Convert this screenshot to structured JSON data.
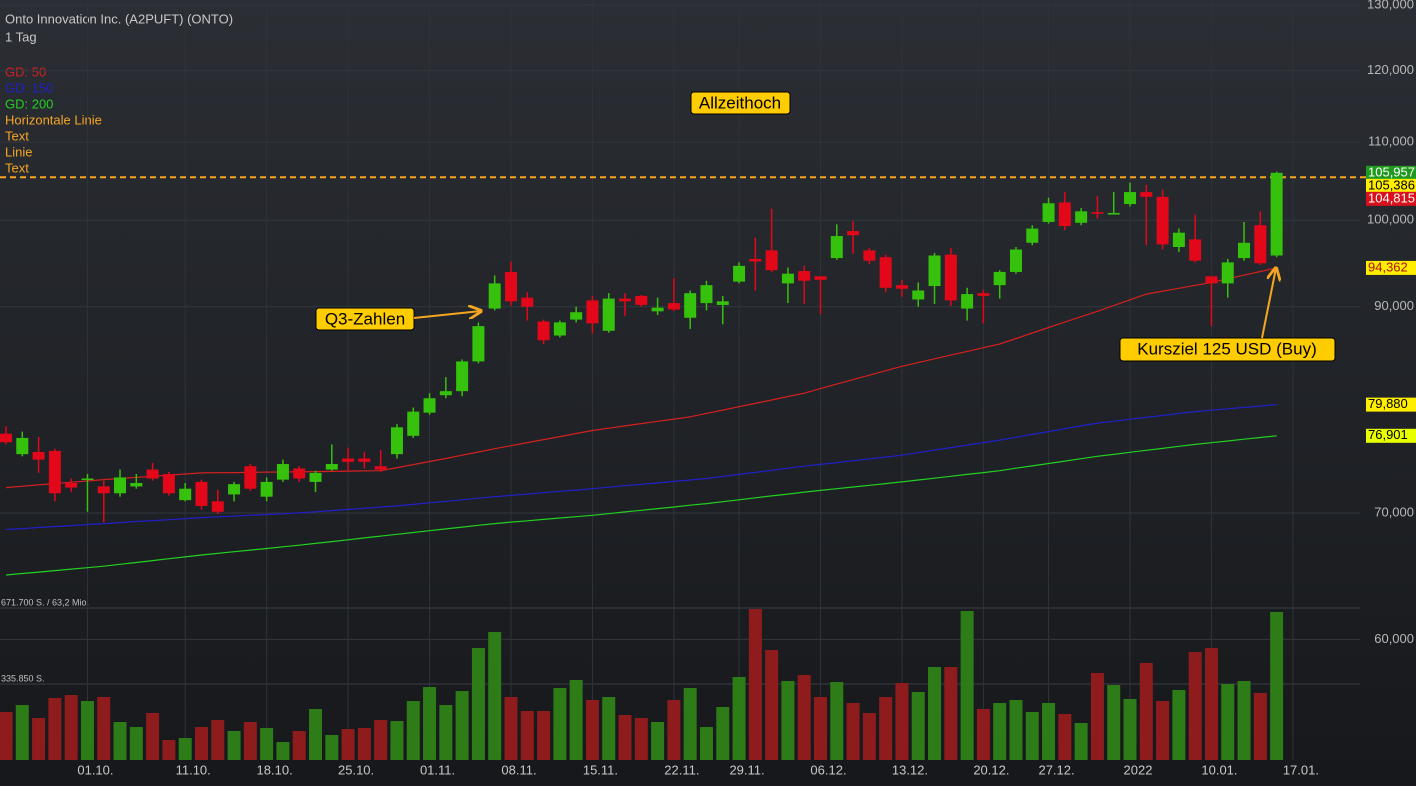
{
  "chart_data": {
    "type": "candlestick",
    "title": "Onto Innovation Inc. (A2PUFT) (ONTO)",
    "subtitle": "1 Tag",
    "log_scale": true,
    "grid": true,
    "categories": [
      null,
      null,
      null,
      null,
      null,
      "01.10.",
      null,
      null,
      null,
      null,
      null,
      "11.10.",
      null,
      null,
      null,
      null,
      "18.10.",
      null,
      null,
      null,
      null,
      "25.10.",
      null,
      null,
      null,
      null,
      "01.11.",
      null,
      null,
      null,
      null,
      "08.11.",
      null,
      null,
      null,
      null,
      "15.11.",
      null,
      null,
      null,
      null,
      "22.11.",
      null,
      null,
      null,
      "29.11.",
      null,
      null,
      null,
      null,
      "06.12.",
      null,
      null,
      null,
      null,
      "13.12.",
      null,
      null,
      null,
      null,
      "20.12.",
      null,
      null,
      null,
      "27.12.",
      null,
      null,
      null,
      null,
      "2022",
      null,
      null,
      null,
      null,
      "10.01.",
      null,
      null,
      null,
      null,
      "17.01."
    ],
    "up_color": "#36c20c",
    "down_color": "#e2081a",
    "open": [
      77100,
      75200,
      75400,
      75500,
      72600,
      72900,
      72300,
      71700,
      72300,
      73800,
      73400,
      71100,
      72700,
      71000,
      71600,
      74100,
      71400,
      72900,
      73900,
      72700,
      73800,
      74800,
      74800,
      74100,
      75200,
      76900,
      79100,
      80800,
      81200,
      84200,
      89800,
      93900,
      91000,
      88400,
      86900,
      88600,
      90700,
      87400,
      90900,
      91200,
      89500,
      90400,
      88800,
      90400,
      90200,
      92800,
      95400,
      96400,
      92600,
      94000,
      93400,
      95500,
      98700,
      96400,
      95600,
      92400,
      90800,
      92300,
      95900,
      89800,
      91500,
      92400,
      93900,
      97300,
      99800,
      102200,
      99700,
      101000,
      100700,
      102000,
      103500,
      102900,
      96800,
      97700,
      93400,
      92600,
      95500,
      99400,
      95800,
      null
    ],
    "high": [
      77800,
      77300,
      76800,
      75700,
      73000,
      73400,
      72800,
      73800,
      73400,
      74400,
      73600,
      72600,
      72900,
      72000,
      72700,
      74300,
      73100,
      74700,
      74100,
      73700,
      76100,
      75800,
      75400,
      75600,
      78000,
      79600,
      81000,
      82600,
      84400,
      88300,
      93500,
      95100,
      91600,
      88600,
      88500,
      90000,
      91200,
      91500,
      91500,
      91300,
      91000,
      93200,
      91800,
      92900,
      91200,
      95000,
      97900,
      101400,
      94400,
      94600,
      93400,
      99500,
      99900,
      96700,
      95900,
      93000,
      92700,
      96100,
      96700,
      92100,
      91900,
      94100,
      96800,
      99400,
      102800,
      103500,
      101500,
      103000,
      103500,
      104700,
      104400,
      103800,
      99000,
      100700,
      93400,
      95400,
      99800,
      101100,
      106100,
      null
    ],
    "low": [
      76100,
      75000,
      73500,
      71000,
      71800,
      70100,
      69200,
      71400,
      72100,
      72800,
      71500,
      71000,
      70300,
      69900,
      71000,
      71900,
      71000,
      72700,
      72700,
      71800,
      73700,
      73700,
      73900,
      73600,
      74800,
      76700,
      78900,
      80500,
      80700,
      84000,
      89600,
      90100,
      88500,
      86000,
      86700,
      88300,
      87100,
      87200,
      89000,
      90000,
      89100,
      89500,
      87600,
      89600,
      88100,
      92600,
      91800,
      93900,
      90400,
      90300,
      89200,
      95300,
      96000,
      94800,
      91600,
      91100,
      90000,
      90300,
      90100,
      88500,
      88200,
      90900,
      93700,
      97000,
      99600,
      98800,
      99400,
      100200,
      100700,
      101700,
      97000,
      96500,
      96200,
      95000,
      87900,
      91000,
      95200,
      94700,
      95600,
      null
    ],
    "close": [
      76300,
      76700,
      74700,
      71700,
      72200,
      73000,
      71700,
      73100,
      72600,
      73000,
      71700,
      72100,
      70600,
      70100,
      72500,
      72100,
      72700,
      74300,
      73000,
      73500,
      74300,
      74500,
      74500,
      73800,
      77700,
      79200,
      80500,
      81200,
      84200,
      87900,
      92600,
      90600,
      90000,
      86400,
      88300,
      89400,
      88200,
      90900,
      90600,
      90200,
      89900,
      89700,
      91500,
      92400,
      90600,
      94600,
      95100,
      94100,
      93700,
      92900,
      93000,
      98100,
      98200,
      95200,
      92100,
      92000,
      91800,
      95800,
      90700,
      91400,
      91200,
      93900,
      96500,
      99000,
      102100,
      99300,
      101100,
      100800,
      100900,
      103500,
      102900,
      97100,
      98500,
      95200,
      92600,
      95000,
      97300,
      94900,
      105957,
      null
    ],
    "volume": {
      "up_color": "#2d7c17",
      "down_color": "#8f1c1c",
      "values": [
        212100,
        243000,
        185600,
        274000,
        287200,
        260700,
        278400,
        167900,
        145800,
        207700,
        88400,
        97200,
        145800,
        176800,
        128200,
        167900,
        141400,
        79500,
        128200,
        225400,
        110500,
        137000,
        141400,
        176800,
        172300,
        260700,
        322600,
        243000,
        304900,
        494900,
        565600,
        278400,
        216500,
        216500,
        318200,
        353500,
        265100,
        278400,
        198900,
        185600,
        167900,
        265100,
        318200,
        145800,
        234200,
        366800,
        667300,
        486100,
        349100,
        375600,
        278400,
        344700,
        251900,
        207700,
        278400,
        340300,
        300500,
        411000,
        411000,
        658400,
        225400,
        251900,
        265100,
        212100,
        251900,
        203300,
        163500,
        384500,
        331400,
        269600,
        428600,
        260700,
        309300,
        477300,
        494900,
        335800,
        349100,
        296100,
        654000,
        null
      ],
      "vlim": [
        0,
        671700
      ],
      "vticks": [
        {
          "value": 671700,
          "label": "671.700 S. / 63,2 Mio."
        },
        {
          "value": 335850,
          "label": "335.850 S."
        }
      ]
    },
    "series": [
      {
        "name": "GD: 50",
        "color": "#d42020",
        "values": [
          72200,
          72320,
          72430,
          72550,
          72670,
          72780,
          72900,
          73000,
          73100,
          73200,
          73300,
          73400,
          73500,
          73520,
          73530,
          73550,
          73570,
          73580,
          73600,
          73620,
          73640,
          73660,
          73680,
          73700,
          73980,
          74250,
          74530,
          74800,
          75100,
          75400,
          75700,
          75980,
          76270,
          76550,
          76830,
          77120,
          77400,
          77620,
          77830,
          78050,
          78270,
          78480,
          78700,
          79030,
          79350,
          79680,
          80000,
          80330,
          80670,
          81000,
          81450,
          81900,
          82350,
          82800,
          83250,
          83700,
          84080,
          84470,
          84850,
          85230,
          85620,
          86000,
          86580,
          87170,
          87750,
          88330,
          88920,
          89500,
          90130,
          90770,
          91400,
          91730,
          92050,
          92380,
          92700,
          93120,
          93530,
          93950,
          94362,
          null
        ]
      },
      {
        "name": "GD: 150",
        "color": "#2020c8",
        "values": [
          68600,
          68680,
          68770,
          68850,
          68930,
          69020,
          69100,
          69180,
          69270,
          69350,
          69430,
          69520,
          69600,
          69670,
          69730,
          69800,
          69870,
          69930,
          70000,
          70100,
          70200,
          70300,
          70400,
          70500,
          70600,
          70730,
          70870,
          71000,
          71130,
          71270,
          71400,
          71520,
          71630,
          71750,
          71870,
          71980,
          72100,
          72230,
          72360,
          72490,
          72610,
          72740,
          72870,
          73000,
          73180,
          73370,
          73550,
          73730,
          73920,
          74100,
          74270,
          74430,
          74600,
          74770,
          74930,
          75100,
          75330,
          75570,
          75800,
          76030,
          76270,
          76500,
          76770,
          77030,
          77300,
          77570,
          77830,
          78100,
          78280,
          78470,
          78650,
          78830,
          79020,
          79200,
          79340,
          79470,
          79610,
          79740,
          79880,
          null
        ]
      },
      {
        "name": "GD: 200",
        "color": "#22d022",
        "values": [
          64900,
          65020,
          65130,
          65250,
          65370,
          65480,
          65600,
          65750,
          65900,
          66050,
          66200,
          66350,
          66500,
          66630,
          66770,
          66900,
          67030,
          67170,
          67300,
          67450,
          67600,
          67750,
          67900,
          68050,
          68200,
          68350,
          68500,
          68650,
          68800,
          68950,
          69100,
          69220,
          69330,
          69450,
          69570,
          69680,
          69800,
          69940,
          70090,
          70230,
          70370,
          70510,
          70660,
          70800,
          70970,
          71130,
          71300,
          71470,
          71630,
          71800,
          71950,
          72100,
          72250,
          72400,
          72550,
          72700,
          72870,
          73030,
          73200,
          73370,
          73530,
          73700,
          73920,
          74130,
          74350,
          74570,
          74780,
          75000,
          75180,
          75370,
          75550,
          75730,
          75920,
          76100,
          76260,
          76420,
          76580,
          76740,
          76901,
          null
        ]
      }
    ],
    "tools": [
      "Horizontale Linie",
      "Text",
      "Linie",
      "Text"
    ],
    "tools_color": "#f5a623",
    "hline": {
      "value": 105386,
      "color": "#f5a623"
    },
    "ylim": [
      51800,
      130800
    ],
    "yticks": [
      {
        "value": 130000,
        "label": "130,000"
      },
      {
        "value": 120000,
        "label": "120,000"
      },
      {
        "value": 110000,
        "label": "110,000"
      },
      {
        "value": 100000,
        "label": "100,000"
      },
      {
        "value": 90000,
        "label": "90,000"
      },
      {
        "value": 70000,
        "label": "70,000"
      },
      {
        "value": 60000,
        "label": "60,000"
      }
    ],
    "price_labels": [
      {
        "value": 105957,
        "label": "105,957",
        "color": "#1f9a1f",
        "text_color": "#ffffff"
      },
      {
        "value": 105386,
        "label": "105,386",
        "color": "#ffee00",
        "text_color": "#000000"
      },
      {
        "value": 104815,
        "label": "104,815",
        "color": "#d8101c",
        "text_color": "#ffffff"
      },
      {
        "value": 94362,
        "label": "94,362",
        "color": "#ffee00",
        "text_color": "#b01010"
      },
      {
        "value": 79880,
        "label": "79,880",
        "color": "#ffee00",
        "text_color": "#000000"
      },
      {
        "value": 76901,
        "label": "76,901",
        "color": "#e8ff00",
        "text_color": "#000000"
      }
    ],
    "annotations": [
      {
        "text": "Allzeithoch"
      },
      {
        "text": "Q3-Zahlen"
      },
      {
        "text": "Kursziel 125 USD (Buy)"
      }
    ]
  }
}
